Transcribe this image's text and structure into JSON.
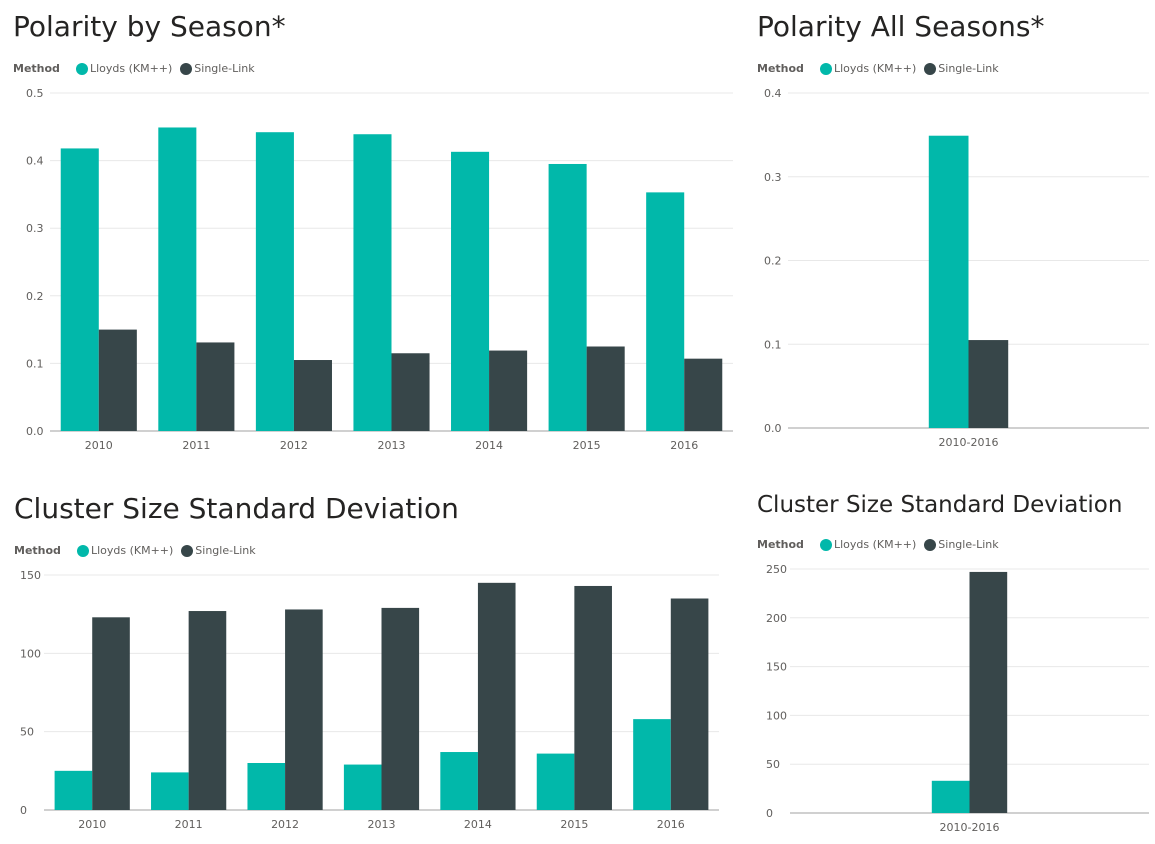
{
  "colors": {
    "lloyds": "#01B8AA",
    "single_link": "#374649"
  },
  "chart_data": [
    {
      "type": "bar",
      "title": "Polarity by Season*",
      "legend_title": "Method",
      "categories": [
        "2010",
        "2011",
        "2012",
        "2013",
        "2014",
        "2015",
        "2016"
      ],
      "series": [
        {
          "name": "Lloyds (KM++)",
          "values": [
            0.418,
            0.449,
            0.442,
            0.439,
            0.413,
            0.395,
            0.353
          ]
        },
        {
          "name": "Single-Link",
          "values": [
            0.15,
            0.131,
            0.105,
            0.115,
            0.119,
            0.125,
            0.107
          ]
        }
      ],
      "ylim": [
        0,
        0.5
      ],
      "yticks": [
        "0.0",
        "0.1",
        "0.2",
        "0.3",
        "0.4",
        "0.5"
      ],
      "grid": true,
      "legend_position": "top-left"
    },
    {
      "type": "bar",
      "title": "Polarity All Seasons*",
      "legend_title": "Method",
      "categories": [
        "2010-2016"
      ],
      "series": [
        {
          "name": "Lloyds (KM++)",
          "values": [
            0.349
          ]
        },
        {
          "name": "Single-Link",
          "values": [
            0.105
          ]
        }
      ],
      "ylim": [
        0,
        0.4
      ],
      "yticks": [
        "0.0",
        "0.1",
        "0.2",
        "0.3",
        "0.4"
      ],
      "grid": true,
      "legend_position": "top-left"
    },
    {
      "type": "bar",
      "title": "Cluster Size Standard Deviation",
      "legend_title": "Method",
      "categories": [
        "2010",
        "2011",
        "2012",
        "2013",
        "2014",
        "2015",
        "2016"
      ],
      "series": [
        {
          "name": "Lloyds (KM++)",
          "values": [
            25,
            24,
            30,
            29,
            37,
            36,
            58
          ]
        },
        {
          "name": "Single-Link",
          "values": [
            123,
            127,
            128,
            129,
            145,
            143,
            135
          ]
        }
      ],
      "ylim": [
        0,
        150
      ],
      "yticks": [
        "0",
        "50",
        "100",
        "150"
      ],
      "grid": true,
      "legend_position": "top-left"
    },
    {
      "type": "bar",
      "title": "Cluster Size Standard Deviation",
      "legend_title": "Method",
      "categories": [
        "2010-2016"
      ],
      "series": [
        {
          "name": "Lloyds (KM++)",
          "values": [
            33
          ]
        },
        {
          "name": "Single-Link",
          "values": [
            247
          ]
        }
      ],
      "ylim": [
        0,
        250
      ],
      "yticks": [
        "0",
        "50",
        "100",
        "150",
        "200",
        "250"
      ],
      "grid": true,
      "legend_position": "top-left"
    }
  ]
}
